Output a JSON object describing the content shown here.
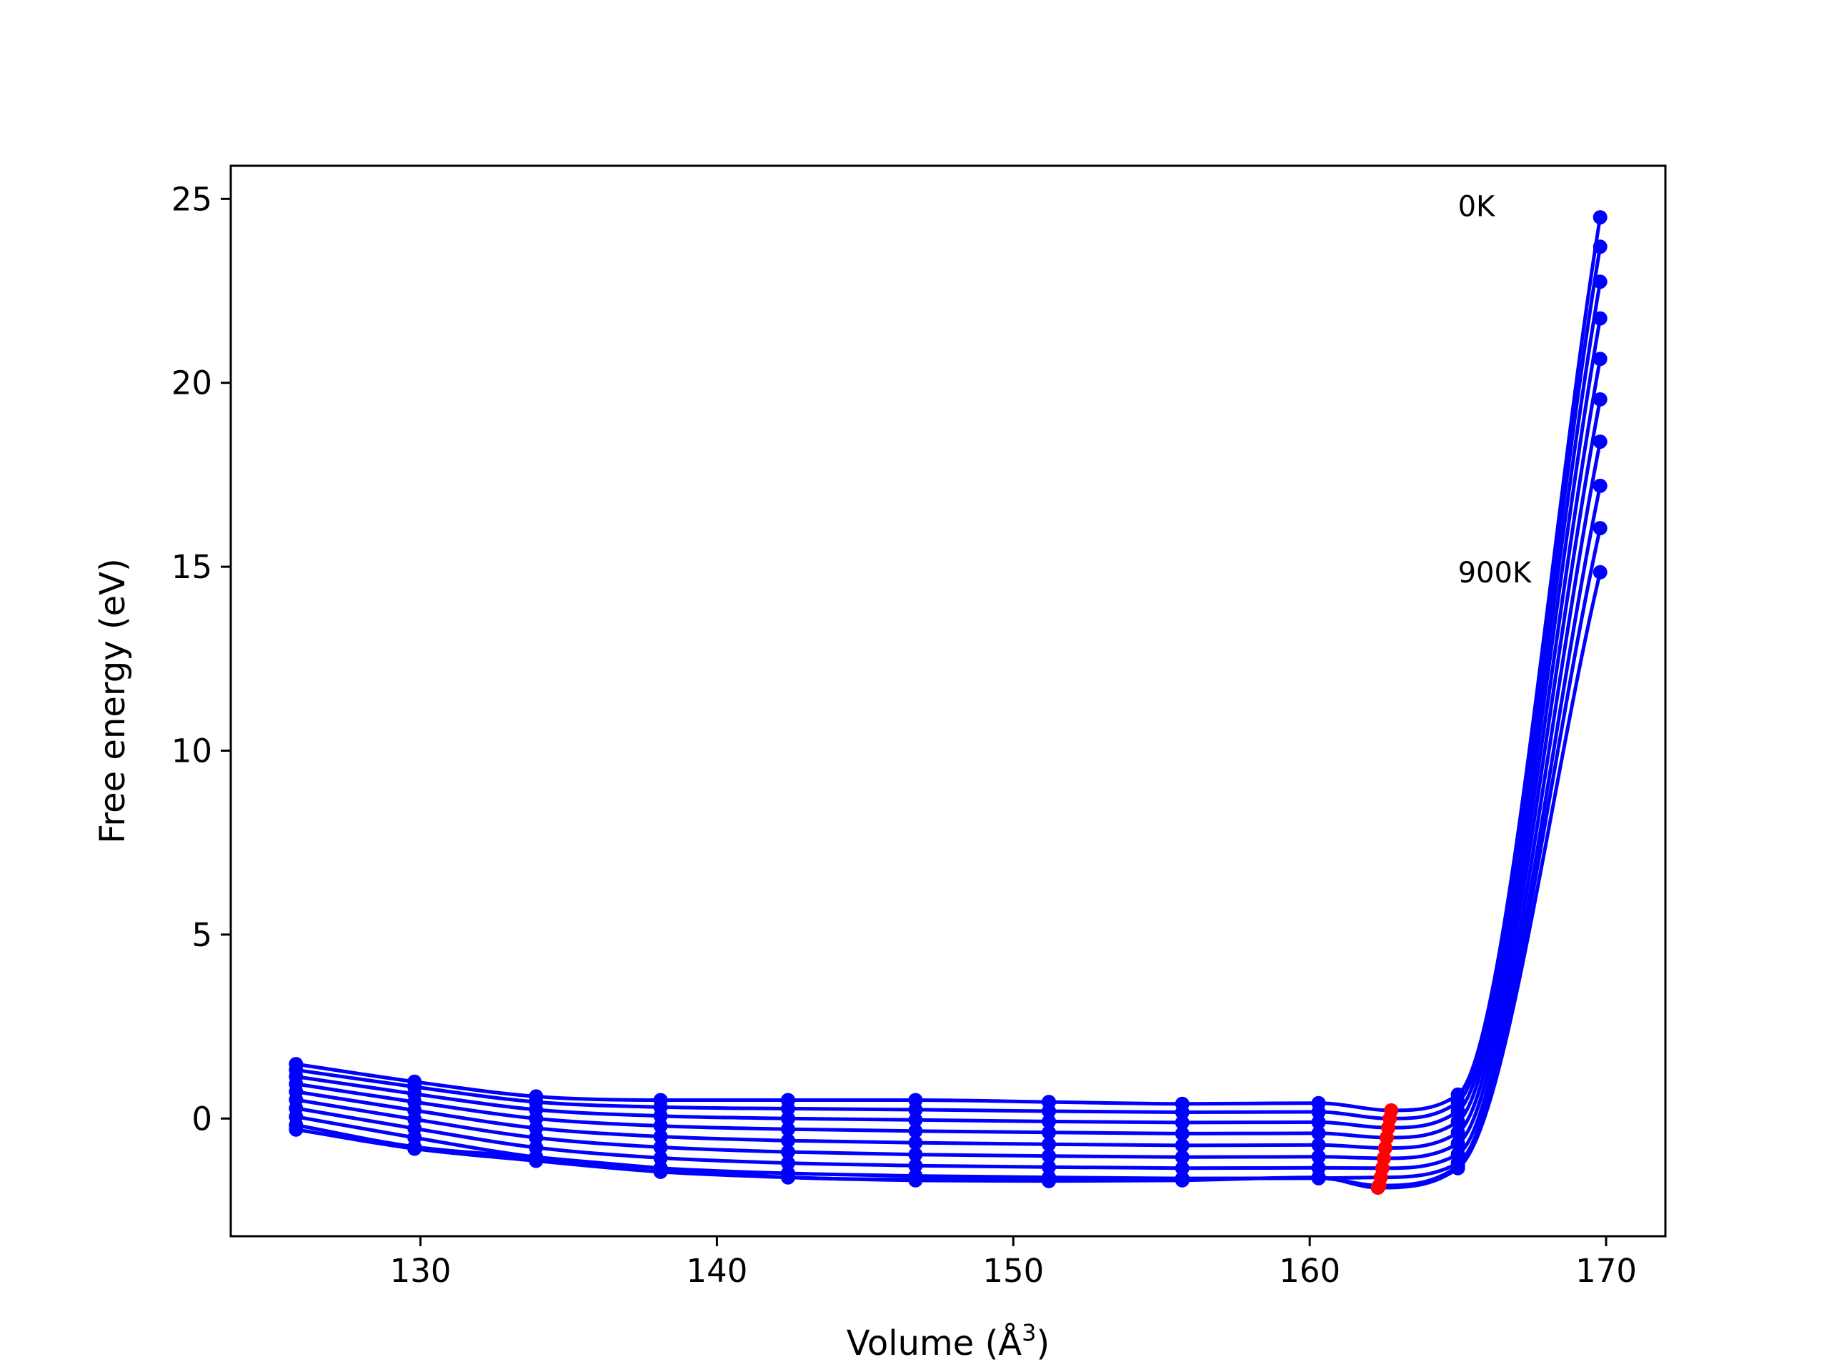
{
  "chart_data": {
    "type": "line",
    "title": "",
    "xlabel": "Volume (Å",
    "xlabel_sup": "3",
    "xlabel_close": ")",
    "ylabel": "Free energy (eV)",
    "xlim": [
      123.6,
      172.0
    ],
    "ylim": [
      -3.2,
      25.9
    ],
    "xticks": [
      130,
      140,
      150,
      160,
      170
    ],
    "yticks": [
      0,
      5,
      10,
      15,
      20,
      25
    ],
    "grid": false,
    "legend": "none",
    "colors": {
      "curves": "#0000ff",
      "minima": "#ff0000",
      "frame": "#000000"
    },
    "annotations": [
      {
        "text": "0K",
        "x": 165.0,
        "y": 24.8
      },
      {
        "text": "900K",
        "x": 165.0,
        "y": 14.85
      }
    ],
    "volumes": [
      125.8,
      129.8,
      133.9,
      138.1,
      142.4,
      146.7,
      151.2,
      155.7,
      160.3,
      165.0,
      169.8
    ],
    "series": [
      {
        "energies": [
          1.48,
          1.0,
          0.6,
          0.5,
          0.5,
          0.5,
          0.45,
          0.4,
          0.42,
          0.65,
          24.5
        ],
        "min_volume": 162.75,
        "min_energy": 0.22
      },
      {
        "energies": [
          1.32,
          0.86,
          0.45,
          0.31,
          0.27,
          0.24,
          0.2,
          0.17,
          0.18,
          0.45,
          23.7
        ],
        "min_volume": 162.7,
        "min_energy": 0.0
      },
      {
        "energies": [
          1.14,
          0.67,
          0.24,
          0.07,
          0.0,
          -0.04,
          -0.08,
          -0.11,
          -0.1,
          0.2,
          22.75
        ],
        "min_volume": 162.65,
        "min_energy": -0.25
      },
      {
        "energies": [
          0.94,
          0.45,
          0.0,
          -0.2,
          -0.29,
          -0.34,
          -0.38,
          -0.41,
          -0.4,
          -0.08,
          21.75
        ],
        "min_volume": 162.6,
        "min_energy": -0.52
      },
      {
        "energies": [
          0.73,
          0.22,
          -0.26,
          -0.49,
          -0.6,
          -0.66,
          -0.7,
          -0.73,
          -0.72,
          -0.38,
          20.65
        ],
        "min_volume": 162.55,
        "min_energy": -0.8
      },
      {
        "energies": [
          0.51,
          -0.02,
          -0.52,
          -0.78,
          -0.91,
          -0.98,
          -1.02,
          -1.05,
          -1.04,
          -0.68,
          19.55
        ],
        "min_volume": 162.5,
        "min_energy": -1.08
      },
      {
        "energies": [
          0.28,
          -0.27,
          -0.79,
          -1.07,
          -1.21,
          -1.28,
          -1.32,
          -1.35,
          -1.34,
          -0.97,
          18.4
        ],
        "min_volume": 162.45,
        "min_energy": -1.35
      },
      {
        "energies": [
          0.05,
          -0.52,
          -1.05,
          -1.35,
          -1.49,
          -1.56,
          -1.6,
          -1.63,
          -1.62,
          -1.21,
          17.2
        ],
        "min_volume": 162.4,
        "min_energy": -1.6
      },
      {
        "energies": [
          -0.18,
          -0.77,
          -1.05,
          -1.35,
          -1.6,
          -1.65,
          -1.65,
          -1.63,
          -1.62,
          -1.29,
          16.05
        ],
        "min_volume": 162.35,
        "min_energy": -1.82
      },
      {
        "energies": [
          -0.3,
          -0.82,
          -1.15,
          -1.45,
          -1.6,
          -1.68,
          -1.7,
          -1.68,
          -1.6,
          -1.35,
          14.85
        ],
        "min_volume": 162.3,
        "min_energy": -1.88
      }
    ]
  }
}
